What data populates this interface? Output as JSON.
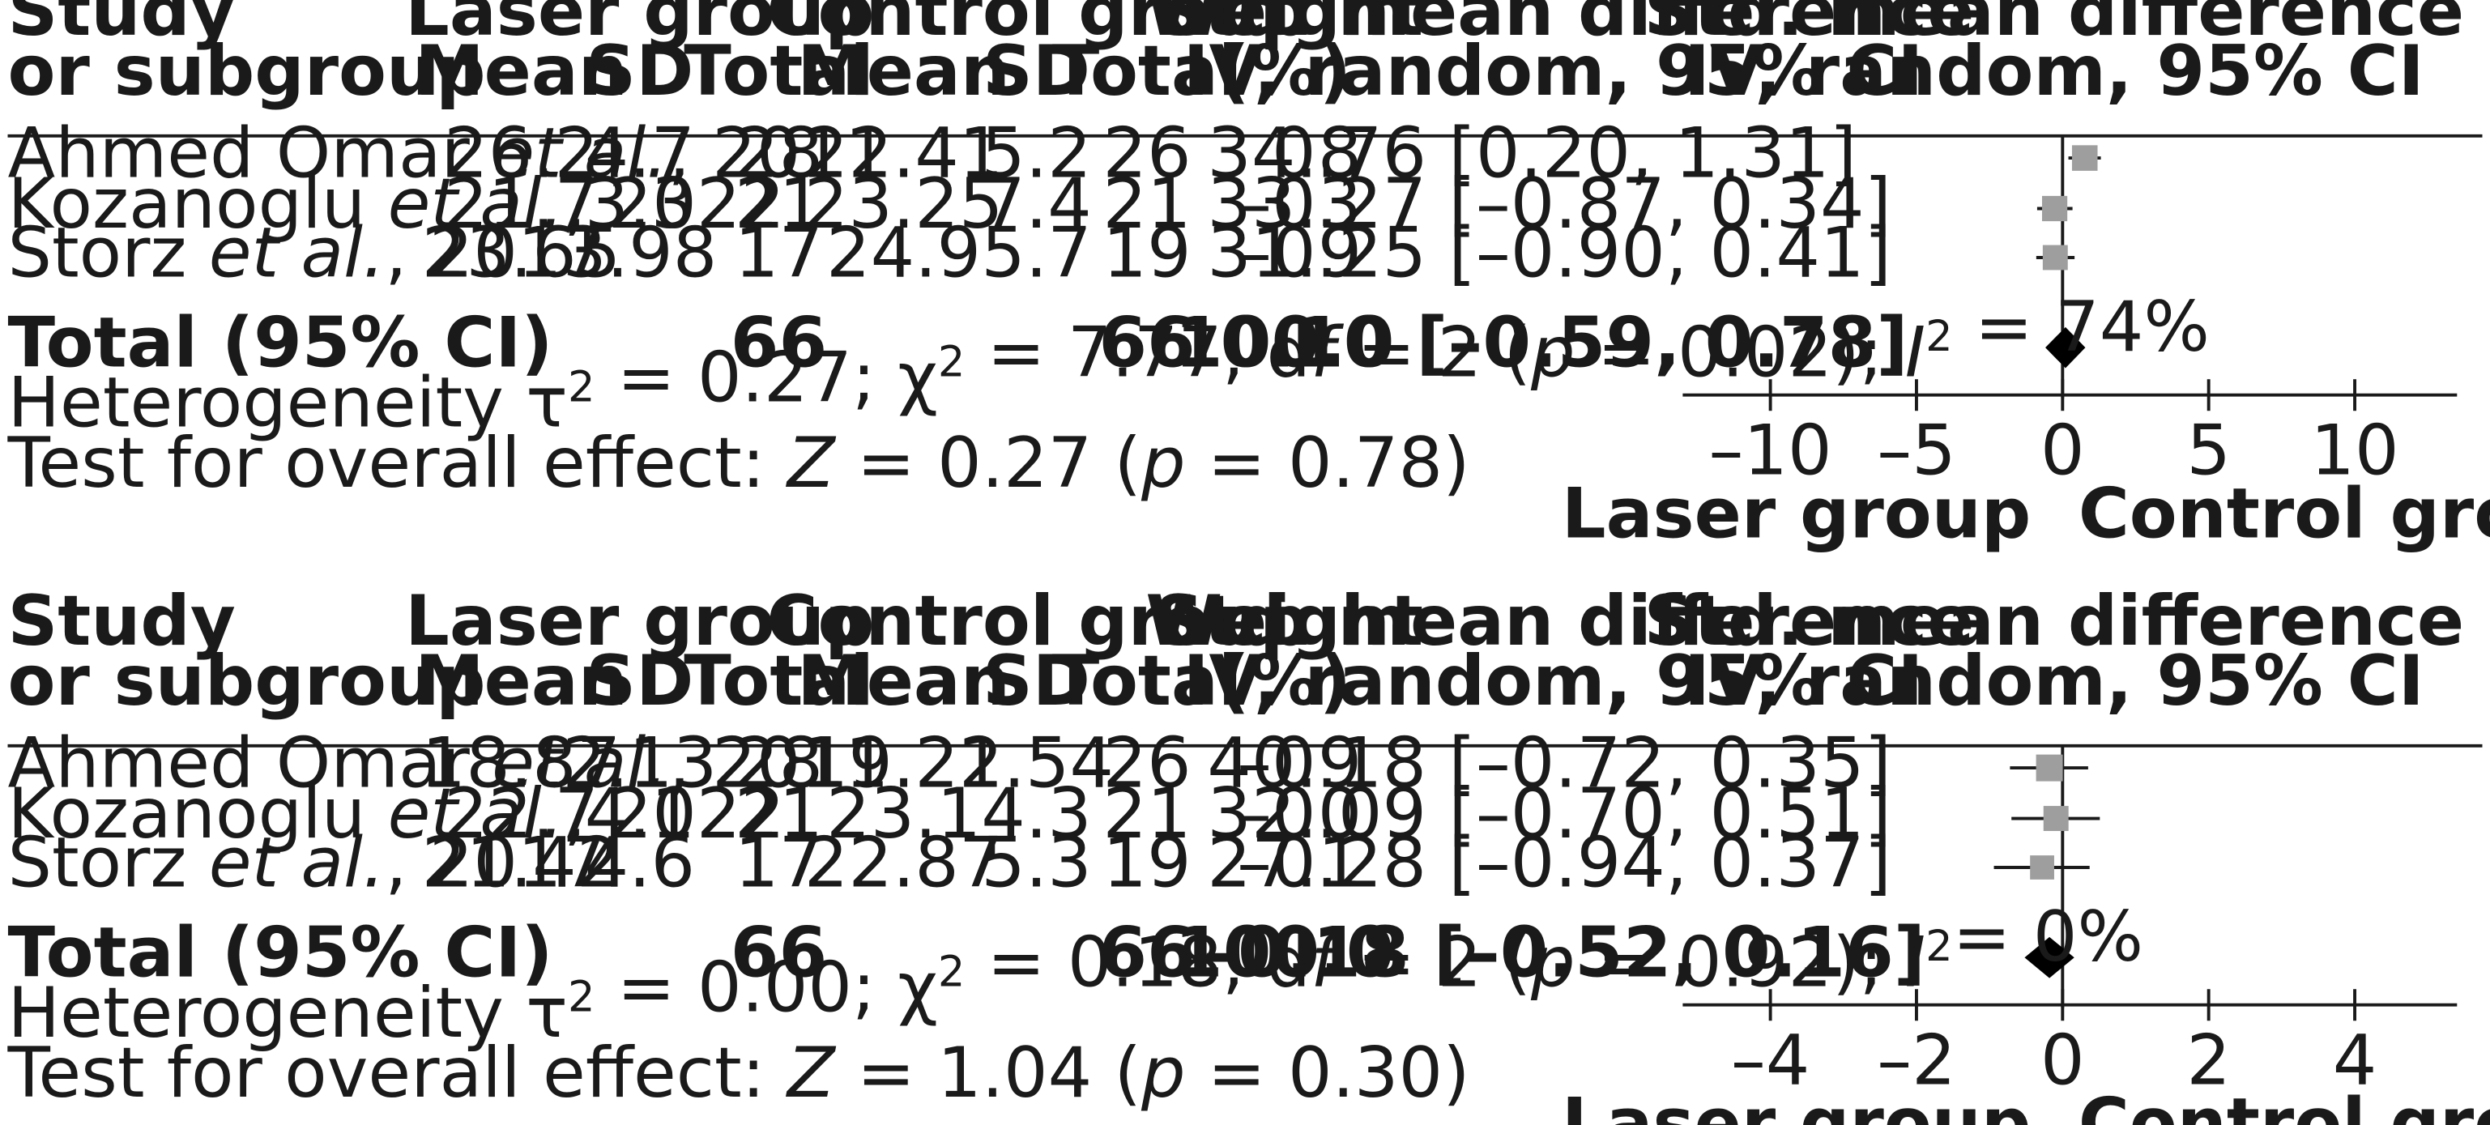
{
  "headers": {
    "study": "Study",
    "subgroup": "or subgroup",
    "laser_group": "Laser group",
    "control_group": "Control group",
    "mean": "Mean",
    "sd": "SD",
    "total": "Total",
    "weight": "Weight",
    "weight_unit": "(%)",
    "smd": "Std. mean difference",
    "smd_method": "IV, random, 95% CI"
  },
  "chart_data": [
    {
      "type": "forest",
      "xlim": [
        -13,
        13.5
      ],
      "xticks": [
        -10,
        -5,
        0,
        5,
        10
      ],
      "xtick_labels": [
        "–10",
        "–5",
        "0",
        "5",
        "10"
      ],
      "favours_left": "Laser group",
      "favours_right": "Control group",
      "studies": [
        {
          "name": "Ahmed Omar",
          "etal": "et al.",
          "year": ", 2011",
          "laser_mean": "26.2",
          "laser_sd": "4.7",
          "laser_total": "28",
          "control_mean": "22.41",
          "control_sd": "5.2",
          "control_total": "26",
          "weight": "34.8",
          "ci_text": "0.76 [0.20, 1.31]",
          "smd": 0.76,
          "lo": 0.2,
          "hi": 1.31
        },
        {
          "name": "Kozanoglu",
          "etal": "et al.",
          "year": ", 2022",
          "laser_mean": "21.7",
          "laser_sd": "3.3",
          "laser_total": "21",
          "control_mean": "23.25",
          "control_sd": "7.4",
          "control_total": "21",
          "weight": "33.3",
          "ci_text": "–0.27 [–0.87, 0.34]",
          "smd": -0.27,
          "lo": -0.87,
          "hi": 0.34
        },
        {
          "name": "Storz",
          "etal": "et al.",
          "year": ", 2017",
          "laser_mean": "23.65",
          "laser_sd": "3.98",
          "laser_total": "17",
          "control_mean": "24.9",
          "control_sd": "5.7",
          "control_total": "19",
          "weight": "31.9",
          "ci_text": "–0.25 [–0.90, 0.41]",
          "smd": -0.25,
          "lo": -0.9,
          "hi": 0.41
        }
      ],
      "total": {
        "label": "Total (95% CI)",
        "laser_total": "66",
        "control_total": "66",
        "weight": "100.0",
        "ci_text": "0.10 [–0.59, 0.78]",
        "smd": 0.1,
        "lo": -0.59,
        "hi": 0.78
      },
      "heterogeneity": "Heterogeneity τ² = 0.27; χ² = 7.77, df = 2 (p = 0.02); I² = 74%",
      "overall_effect": "Test for overall effect: Z = 0.27 (p = 0.78)"
    },
    {
      "type": "forest",
      "xlim": [
        -5.2,
        5.4
      ],
      "xticks": [
        -4,
        -2,
        0,
        2,
        4
      ],
      "xtick_labels": [
        "–4",
        "–2",
        "0",
        "2",
        "4"
      ],
      "favours_left": "Laser group",
      "favours_right": "Control group",
      "studies": [
        {
          "name": "Ahmed Omar",
          "etal": "et al.",
          "year": ", 2011",
          "laser_mean": "18.87",
          "laser_sd": "2.13",
          "laser_total": "28",
          "control_mean": "19.22",
          "control_sd": "1.54",
          "control_total": "26",
          "weight": "40.9",
          "ci_text": "–0.18 [–0.72, 0.35]",
          "smd": -0.18,
          "lo": -0.72,
          "hi": 0.35
        },
        {
          "name": "Kozanoglu",
          "etal": "et al.",
          "year": ", 2022",
          "laser_mean": "22.7",
          "laser_sd": "4.1",
          "laser_total": "21",
          "control_mean": "23.1",
          "control_sd": "4.3",
          "control_total": "21",
          "weight": "32.0",
          "ci_text": "–0.09 [–0.70, 0.51]",
          "smd": -0.09,
          "lo": -0.7,
          "hi": 0.51
        },
        {
          "name": "Storz",
          "etal": "et al.",
          "year": ", 2017",
          "laser_mean": "21.42",
          "laser_sd": "4.6",
          "laser_total": "17",
          "control_mean": "22.87",
          "control_sd": "5.3",
          "control_total": "19",
          "weight": "27.1",
          "ci_text": "–0.28 [–0.94, 0.37]",
          "smd": -0.28,
          "lo": -0.94,
          "hi": 0.37
        }
      ],
      "total": {
        "label": "Total (95% CI)",
        "laser_total": "66",
        "control_total": "66",
        "weight": "100.0",
        "ci_text": "–0.18 [–0.52, 0.16]",
        "smd": -0.18,
        "lo": -0.52,
        "hi": 0.16
      },
      "heterogeneity": "Heterogeneity τ² = 0.00; χ² = 0.18, df = 2 (p = 0.92); I²= 0%",
      "overall_effect": "Test for overall effect: Z = 1.04 (p = 0.30)"
    }
  ]
}
